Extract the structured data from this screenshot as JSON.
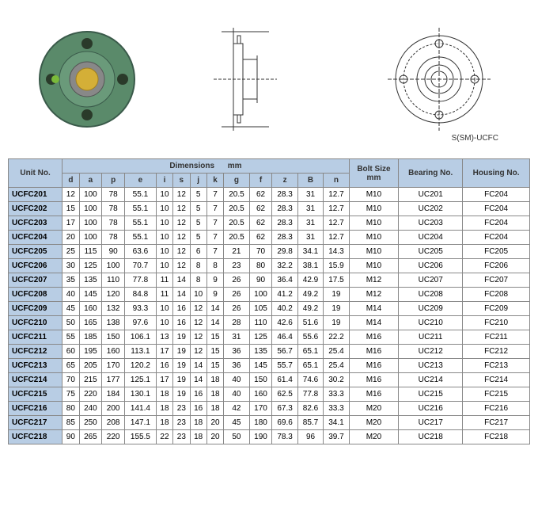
{
  "label_ssm": "S(SM)-UCFC",
  "headers": {
    "unit": "Unit No.",
    "dimensions": "Dimensions",
    "dim_unit": "mm",
    "bolt": "Bolt Size",
    "bolt_unit": "mm",
    "bearing": "Bearing No.",
    "housing": "Housing No."
  },
  "dim_cols": [
    "d",
    "a",
    "p",
    "e",
    "i",
    "s",
    "j",
    "k",
    "g",
    "f",
    "z",
    "B",
    "n"
  ],
  "rows": [
    {
      "unit": "UCFC201",
      "d": "12",
      "a": "100",
      "p": "78",
      "e": "55.1",
      "i": "10",
      "s": "12",
      "j": "5",
      "k": "7",
      "g": "20.5",
      "f": "62",
      "z": "28.3",
      "B": "31",
      "n": "12.7",
      "bolt": "M10",
      "bearing": "UC201",
      "housing": "FC204"
    },
    {
      "unit": "UCFC202",
      "d": "15",
      "a": "100",
      "p": "78",
      "e": "55.1",
      "i": "10",
      "s": "12",
      "j": "5",
      "k": "7",
      "g": "20.5",
      "f": "62",
      "z": "28.3",
      "B": "31",
      "n": "12.7",
      "bolt": "M10",
      "bearing": "UC202",
      "housing": "FC204"
    },
    {
      "unit": "UCFC203",
      "d": "17",
      "a": "100",
      "p": "78",
      "e": "55.1",
      "i": "10",
      "s": "12",
      "j": "5",
      "k": "7",
      "g": "20.5",
      "f": "62",
      "z": "28.3",
      "B": "31",
      "n": "12.7",
      "bolt": "M10",
      "bearing": "UC203",
      "housing": "FC204"
    },
    {
      "unit": "UCFC204",
      "d": "20",
      "a": "100",
      "p": "78",
      "e": "55.1",
      "i": "10",
      "s": "12",
      "j": "5",
      "k": "7",
      "g": "20.5",
      "f": "62",
      "z": "28.3",
      "B": "31",
      "n": "12.7",
      "bolt": "M10",
      "bearing": "UC204",
      "housing": "FC204"
    },
    {
      "unit": "UCFC205",
      "d": "25",
      "a": "115",
      "p": "90",
      "e": "63.6",
      "i": "10",
      "s": "12",
      "j": "6",
      "k": "7",
      "g": "21",
      "f": "70",
      "z": "29.8",
      "B": "34.1",
      "n": "14.3",
      "bolt": "M10",
      "bearing": "UC205",
      "housing": "FC205"
    },
    {
      "unit": "UCFC206",
      "d": "30",
      "a": "125",
      "p": "100",
      "e": "70.7",
      "i": "10",
      "s": "12",
      "j": "8",
      "k": "8",
      "g": "23",
      "f": "80",
      "z": "32.2",
      "B": "38.1",
      "n": "15.9",
      "bolt": "M10",
      "bearing": "UC206",
      "housing": "FC206"
    },
    {
      "unit": "UCFC207",
      "d": "35",
      "a": "135",
      "p": "110",
      "e": "77.8",
      "i": "11",
      "s": "14",
      "j": "8",
      "k": "9",
      "g": "26",
      "f": "90",
      "z": "36.4",
      "B": "42.9",
      "n": "17.5",
      "bolt": "M12",
      "bearing": "UC207",
      "housing": "FC207"
    },
    {
      "unit": "UCFC208",
      "d": "40",
      "a": "145",
      "p": "120",
      "e": "84.8",
      "i": "11",
      "s": "14",
      "j": "10",
      "k": "9",
      "g": "26",
      "f": "100",
      "z": "41.2",
      "B": "49.2",
      "n": "19",
      "bolt": "M12",
      "bearing": "UC208",
      "housing": "FC208"
    },
    {
      "unit": "UCFC209",
      "d": "45",
      "a": "160",
      "p": "132",
      "e": "93.3",
      "i": "10",
      "s": "16",
      "j": "12",
      "k": "14",
      "g": "26",
      "f": "105",
      "z": "40.2",
      "B": "49.2",
      "n": "19",
      "bolt": "M14",
      "bearing": "UC209",
      "housing": "FC209"
    },
    {
      "unit": "UCFC210",
      "d": "50",
      "a": "165",
      "p": "138",
      "e": "97.6",
      "i": "10",
      "s": "16",
      "j": "12",
      "k": "14",
      "g": "28",
      "f": "110",
      "z": "42.6",
      "B": "51.6",
      "n": "19",
      "bolt": "M14",
      "bearing": "UC210",
      "housing": "FC210"
    },
    {
      "unit": "UCFC211",
      "d": "55",
      "a": "185",
      "p": "150",
      "e": "106.1",
      "i": "13",
      "s": "19",
      "j": "12",
      "k": "15",
      "g": "31",
      "f": "125",
      "z": "46.4",
      "B": "55.6",
      "n": "22.2",
      "bolt": "M16",
      "bearing": "UC211",
      "housing": "FC211"
    },
    {
      "unit": "UCFC212",
      "d": "60",
      "a": "195",
      "p": "160",
      "e": "113.1",
      "i": "17",
      "s": "19",
      "j": "12",
      "k": "15",
      "g": "36",
      "f": "135",
      "z": "56.7",
      "B": "65.1",
      "n": "25.4",
      "bolt": "M16",
      "bearing": "UC212",
      "housing": "FC212"
    },
    {
      "unit": "UCFC213",
      "d": "65",
      "a": "205",
      "p": "170",
      "e": "120.2",
      "i": "16",
      "s": "19",
      "j": "14",
      "k": "15",
      "g": "36",
      "f": "145",
      "z": "55.7",
      "B": "65.1",
      "n": "25.4",
      "bolt": "M16",
      "bearing": "UC213",
      "housing": "FC213"
    },
    {
      "unit": "UCFC214",
      "d": "70",
      "a": "215",
      "p": "177",
      "e": "125.1",
      "i": "17",
      "s": "19",
      "j": "14",
      "k": "18",
      "g": "40",
      "f": "150",
      "z": "61.4",
      "B": "74.6",
      "n": "30.2",
      "bolt": "M16",
      "bearing": "UC214",
      "housing": "FC214"
    },
    {
      "unit": "UCFC215",
      "d": "75",
      "a": "220",
      "p": "184",
      "e": "130.1",
      "i": "18",
      "s": "19",
      "j": "16",
      "k": "18",
      "g": "40",
      "f": "160",
      "z": "62.5",
      "B": "77.8",
      "n": "33.3",
      "bolt": "M16",
      "bearing": "UC215",
      "housing": "FC215"
    },
    {
      "unit": "UCFC216",
      "d": "80",
      "a": "240",
      "p": "200",
      "e": "141.4",
      "i": "18",
      "s": "23",
      "j": "16",
      "k": "18",
      "g": "42",
      "f": "170",
      "z": "67.3",
      "B": "82.6",
      "n": "33.3",
      "bolt": "M20",
      "bearing": "UC216",
      "housing": "FC216"
    },
    {
      "unit": "UCFC217",
      "d": "85",
      "a": "250",
      "p": "208",
      "e": "147.1",
      "i": "18",
      "s": "23",
      "j": "18",
      "k": "20",
      "g": "45",
      "f": "180",
      "z": "69.6",
      "B": "85.7",
      "n": "34.1",
      "bolt": "M20",
      "bearing": "UC217",
      "housing": "FC217"
    },
    {
      "unit": "UCFC218",
      "d": "90",
      "a": "265",
      "p": "220",
      "e": "155.5",
      "i": "22",
      "s": "23",
      "j": "18",
      "k": "20",
      "g": "50",
      "f": "190",
      "z": "78.3",
      "B": "96",
      "n": "39.7",
      "bolt": "M20",
      "bearing": "UC218",
      "housing": "FC218"
    }
  ],
  "colors": {
    "header_bg": "#b8cde4",
    "border": "#888888",
    "product_body": "#5a8a6a",
    "product_bore": "#d4af37"
  }
}
